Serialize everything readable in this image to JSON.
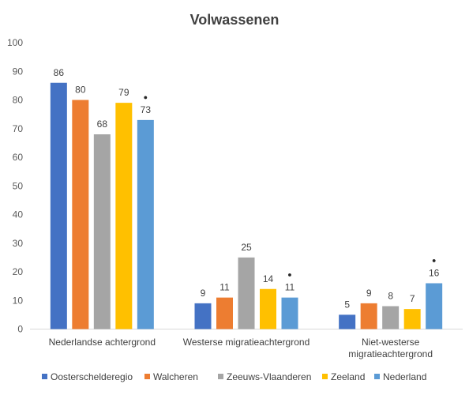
{
  "chart_data": {
    "type": "bar",
    "title": "Volwassenen",
    "categories": [
      [
        "Nederlandse achtergrond"
      ],
      [
        "Westerse migratieachtergrond"
      ],
      [
        "Niet-westerse",
        "migratieachtergrond"
      ]
    ],
    "series": [
      {
        "name": "Oosterschelderegio",
        "color": "#4472C4",
        "values": [
          86,
          9,
          5
        ]
      },
      {
        "name": "Walcheren",
        "color": "#ED7D31",
        "values": [
          80,
          11,
          9
        ]
      },
      {
        "name": "Zeeuws-Vlaanderen",
        "color": "#A5A5A5",
        "values": [
          68,
          25,
          8
        ]
      },
      {
        "name": "Zeeland",
        "color": "#FFC000",
        "values": [
          79,
          14,
          7
        ]
      },
      {
        "name": "Nederland",
        "color": "#5B9BD5",
        "values": [
          73,
          11,
          16
        ]
      }
    ],
    "bar_labels": [
      [
        "86",
        "9",
        "5"
      ],
      [
        "80",
        "11",
        "9"
      ],
      [
        "68",
        "25",
        "8"
      ],
      [
        "79",
        "14",
        "7"
      ],
      [
        "73",
        "11",
        "16"
      ]
    ],
    "significance_markers": [
      {
        "series": "Nederland",
        "category_index": 0
      },
      {
        "series": "Nederland",
        "category_index": 1
      },
      {
        "series": "Nederland",
        "category_index": 2
      }
    ],
    "marker_glyph": "●",
    "ylim": [
      0,
      100
    ],
    "yticks": [
      0,
      10,
      20,
      30,
      40,
      50,
      60,
      70,
      80,
      90,
      100
    ],
    "grid": false,
    "legend_position": "bottom"
  }
}
